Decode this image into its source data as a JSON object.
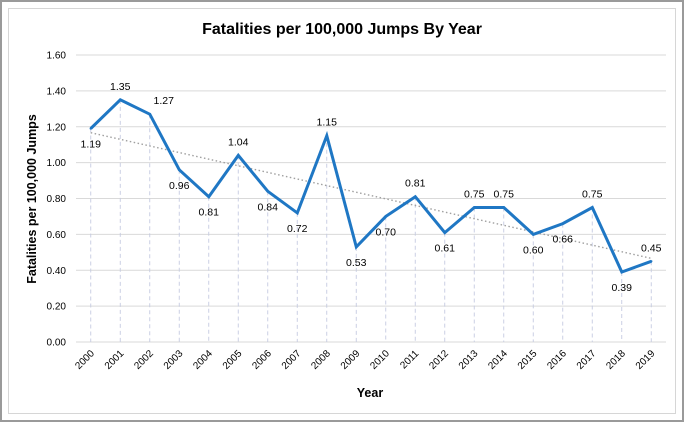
{
  "chart_data": {
    "type": "line",
    "title": "Fatalities per 100,000 Jumps By Year",
    "xlabel": "Year",
    "ylabel": "Fatalities per 100,000 Jumps",
    "categories": [
      "2000",
      "2001",
      "2002",
      "2003",
      "2004",
      "2005",
      "2006",
      "2007",
      "2008",
      "2009",
      "2010",
      "2011",
      "2012",
      "2013",
      "2014",
      "2015",
      "2016",
      "2017",
      "2018",
      "2019"
    ],
    "series": [
      {
        "values": [
          1.19,
          1.35,
          1.27,
          0.96,
          0.81,
          1.04,
          0.84,
          0.72,
          1.15,
          0.53,
          0.7,
          0.81,
          0.61,
          0.75,
          0.75,
          0.6,
          0.66,
          0.75,
          0.39,
          0.45
        ],
        "labels": [
          "1.19",
          "1.35",
          "1.27",
          "0.96",
          "0.81",
          "1.04",
          "0.84",
          "0.72",
          "1.15",
          "0.53",
          "0.70",
          "0.81",
          "0.61",
          "0.75",
          "0.75",
          "0.60",
          "0.66",
          "0.75",
          "0.39",
          "0.45"
        ],
        "color": "#1f77c4"
      }
    ],
    "trendline": {
      "type": "linear",
      "style": "dotted",
      "color": "#a0a0a0"
    },
    "ylim": [
      0,
      1.6
    ],
    "yticks": [
      "0.00",
      "0.20",
      "0.40",
      "0.60",
      "0.80",
      "1.00",
      "1.20",
      "1.40",
      "1.60"
    ],
    "grid": true,
    "vertical_drop_lines": true,
    "legend": "none"
  }
}
